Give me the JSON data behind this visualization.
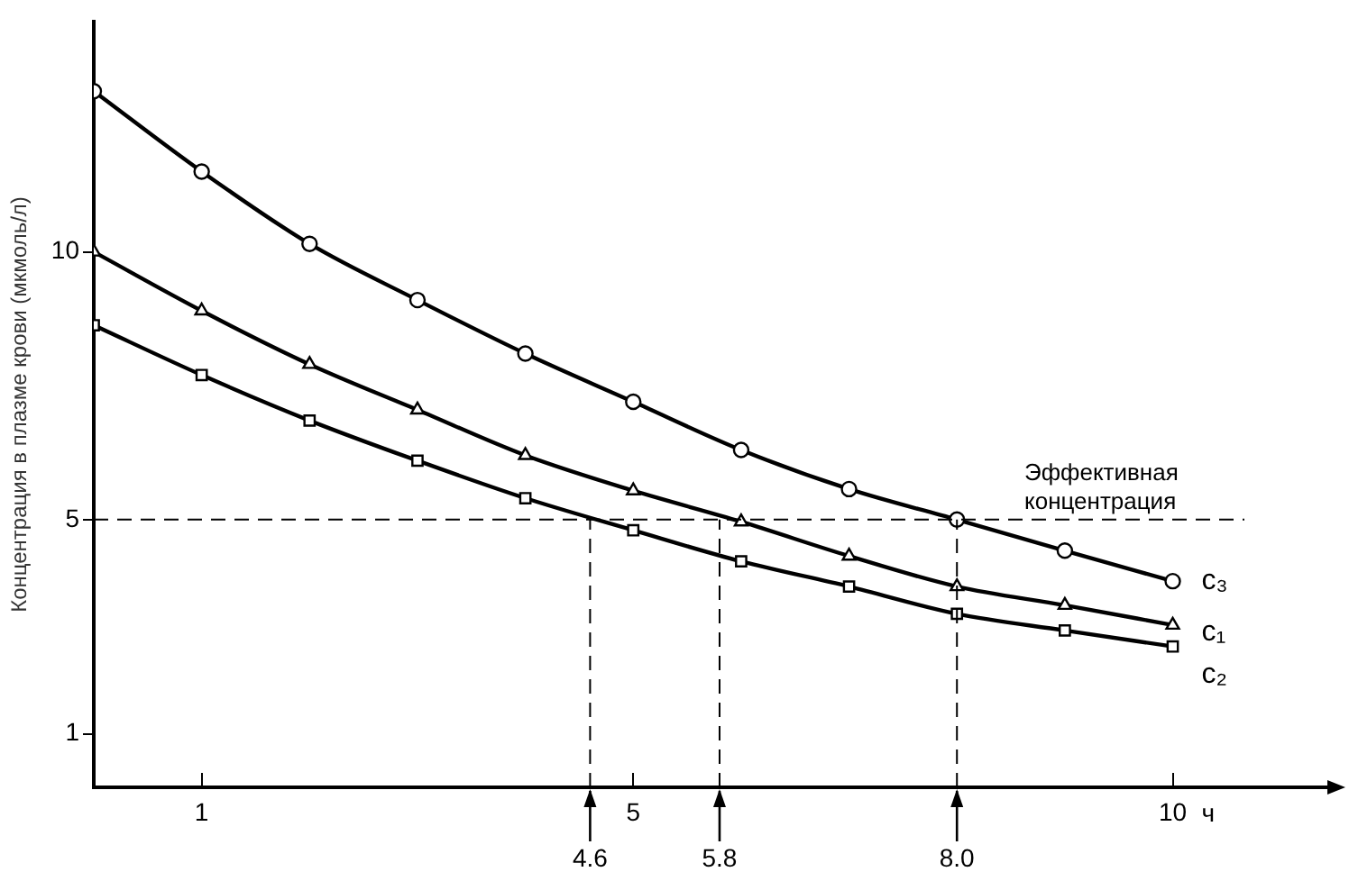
{
  "chart_data": {
    "type": "line",
    "xlabel": "ч",
    "ylabel": "Концентрация в плазме крови (мкмоль/л)",
    "x": [
      0,
      1,
      2,
      3,
      4,
      5,
      6,
      7,
      8,
      9,
      10
    ],
    "series": [
      {
        "name": "c₃",
        "color": "#000000",
        "marker": "circle",
        "values": [
          13.0,
          11.5,
          10.15,
          9.1,
          8.1,
          7.2,
          6.3,
          5.57,
          5.0,
          4.42,
          3.85
        ]
      },
      {
        "name": "c₁",
        "color": "#000000",
        "marker": "triangle",
        "values": [
          10.0,
          8.9,
          7.9,
          7.05,
          6.2,
          5.54,
          4.96,
          4.32,
          3.75,
          3.4,
          3.03
        ]
      },
      {
        "name": "c₂",
        "color": "#000000",
        "marker": "square",
        "values": [
          8.63,
          7.7,
          6.85,
          6.1,
          5.4,
          4.8,
          4.22,
          3.75,
          3.24,
          2.93,
          2.63
        ]
      }
    ],
    "xlim": [
      0,
      11.5
    ],
    "xticks": [
      1,
      5,
      10
    ],
    "ylim": [
      0,
      14.3
    ],
    "yticks": [
      1,
      5,
      10
    ],
    "ref_lines": [
      {
        "axis": "y",
        "value": 5,
        "label": "Эффективная концентрация",
        "line_style": "dashed"
      },
      {
        "axis": "x",
        "value": 4.6,
        "label": "4.6",
        "line_style": "dashed"
      },
      {
        "axis": "x",
        "value": 5.8,
        "label": "5.8",
        "line_style": "dashed"
      },
      {
        "axis": "x",
        "value": 8.0,
        "label": "8.0",
        "line_style": "dashed"
      }
    ],
    "grid": false,
    "legend": false,
    "line_style": "solid"
  }
}
